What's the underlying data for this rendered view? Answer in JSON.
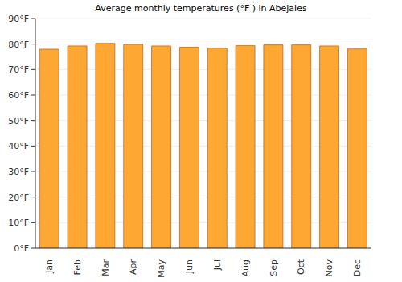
{
  "chart_data": {
    "type": "bar",
    "title": "Average monthly temperatures (°F ) in Abejales",
    "categories": [
      "Jan",
      "Feb",
      "Mar",
      "Apr",
      "May",
      "Jun",
      "Jul",
      "Aug",
      "Sep",
      "Oct",
      "Nov",
      "Dec"
    ],
    "values": [
      78,
      79.3,
      80.3,
      79.9,
      79.3,
      78.8,
      78.4,
      79.4,
      79.7,
      79.7,
      79.3,
      78.1
    ],
    "color": "#ffa733",
    "ylim": [
      0,
      90
    ],
    "yticks": [
      {
        "value": 0,
        "label": "0°F"
      },
      {
        "value": 10,
        "label": "10°F"
      },
      {
        "value": 20,
        "label": "20°F"
      },
      {
        "value": 30,
        "label": "30°F"
      },
      {
        "value": 40,
        "label": "40°F"
      },
      {
        "value": 50,
        "label": "50°F"
      },
      {
        "value": 60,
        "label": "60°F"
      },
      {
        "value": 70,
        "label": "70°F"
      },
      {
        "value": 80,
        "label": "80°F"
      },
      {
        "value": 90,
        "label": "90°F"
      }
    ],
    "grid": true
  }
}
